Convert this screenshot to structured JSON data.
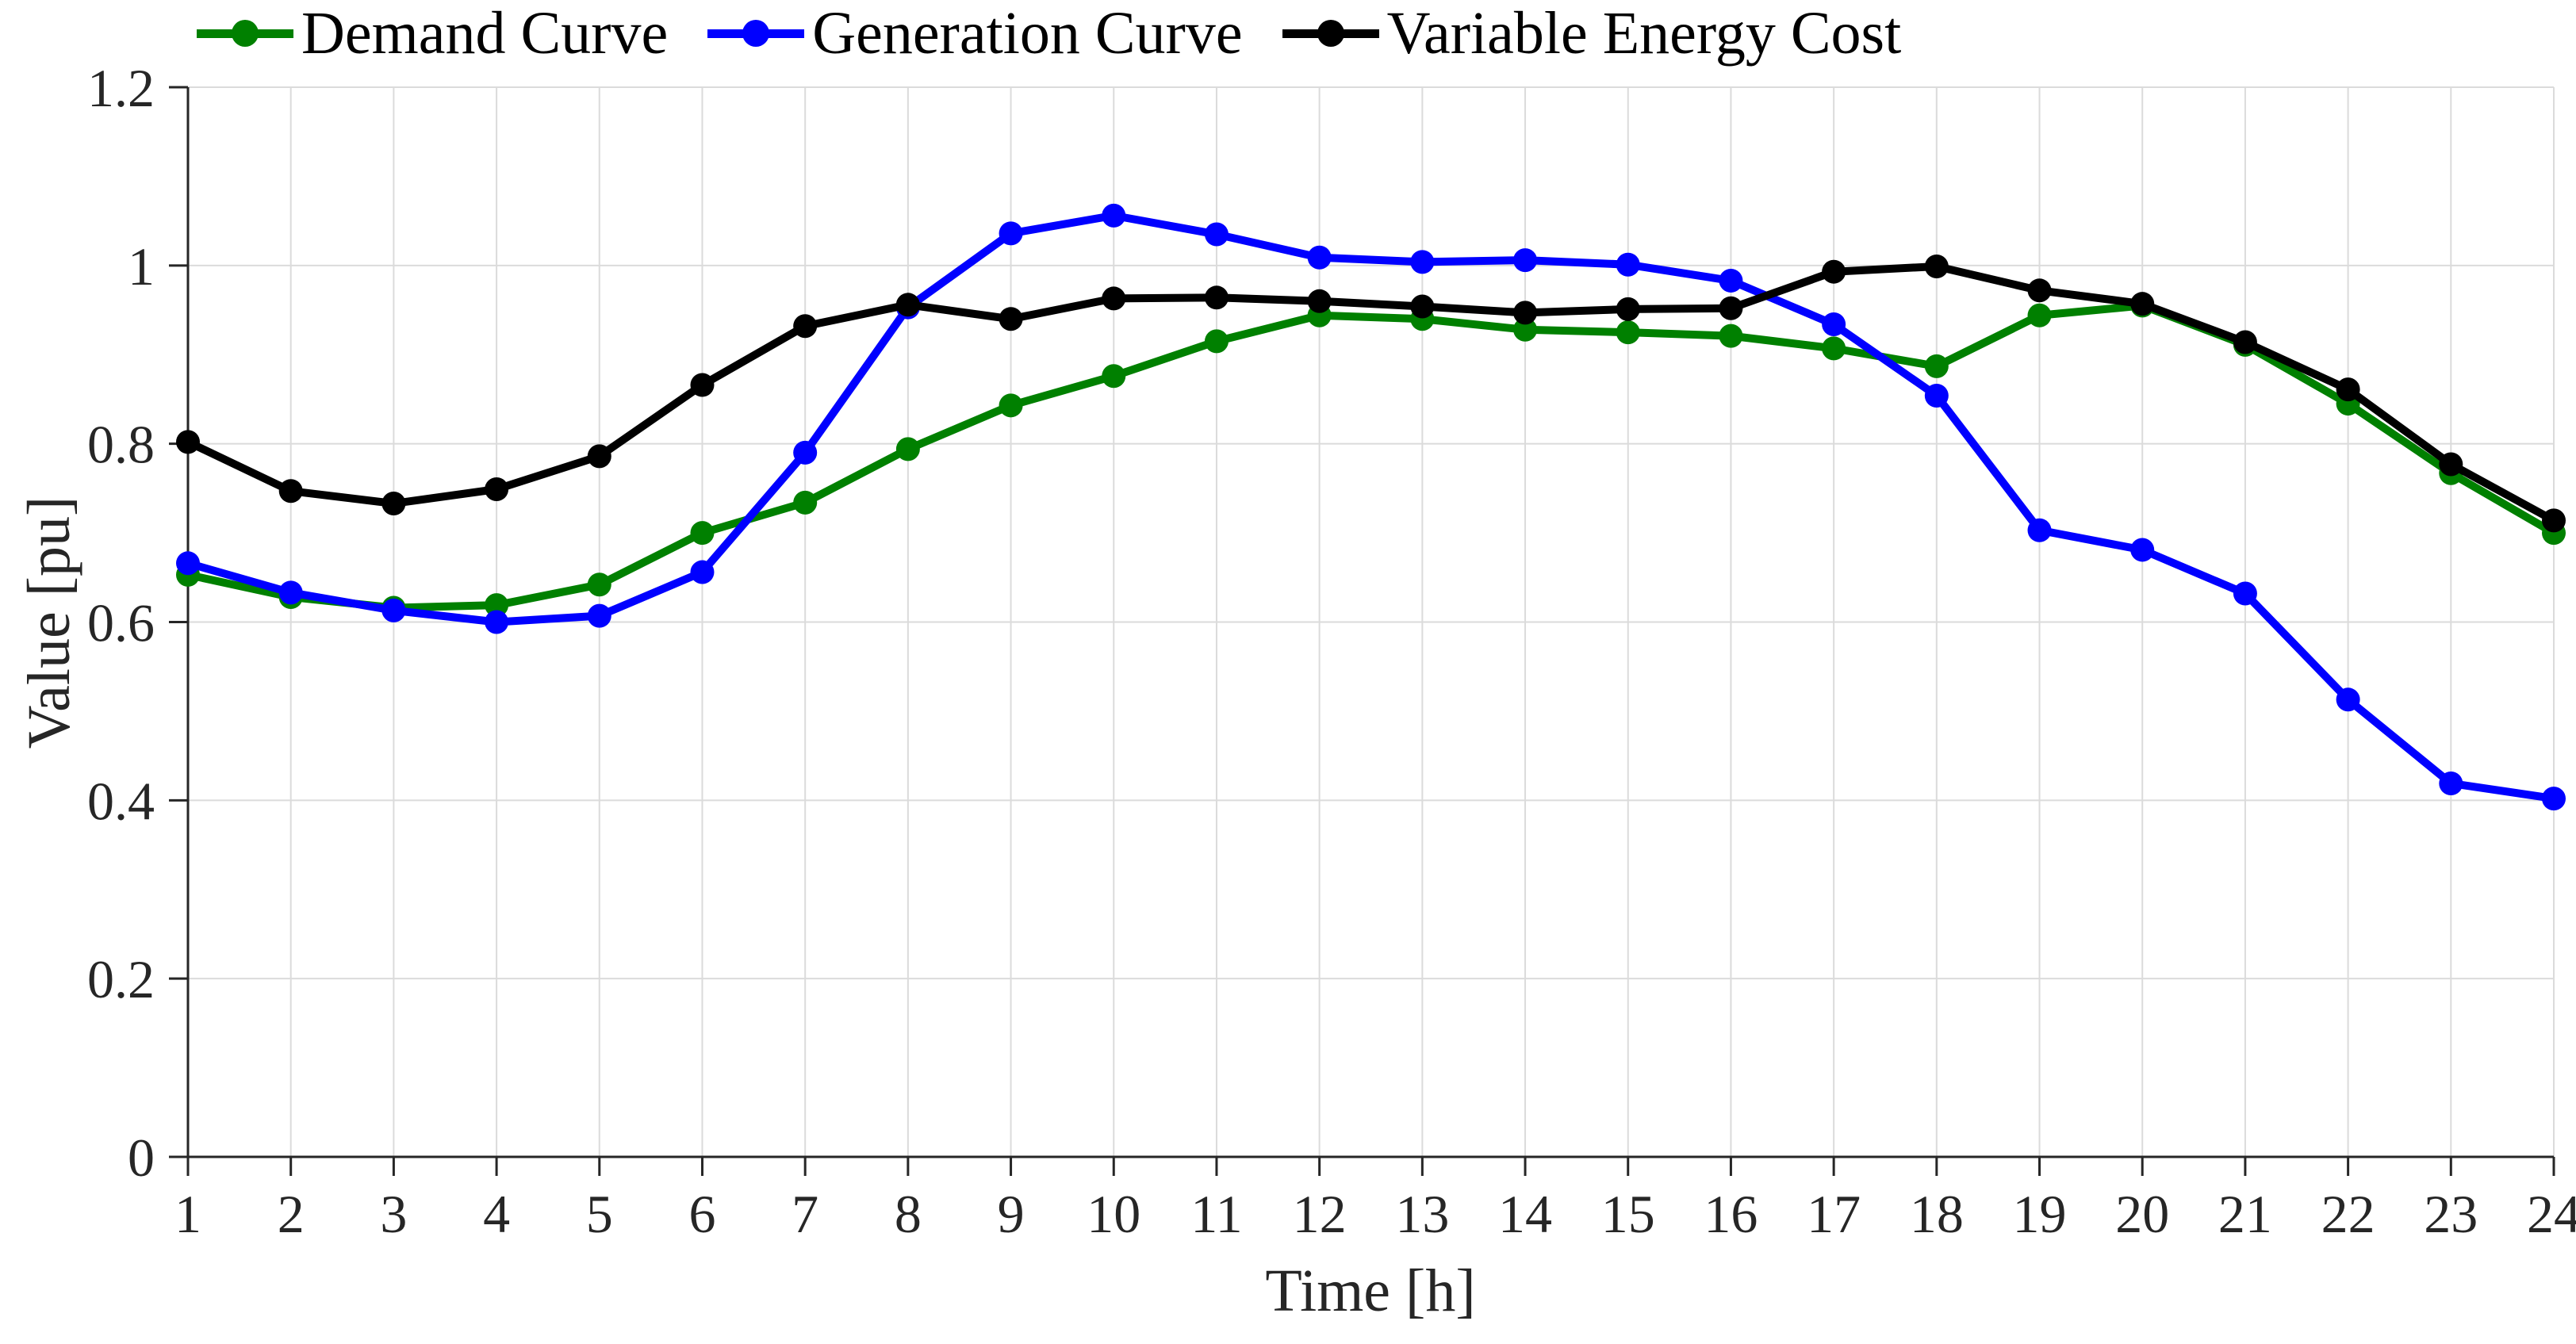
{
  "figure": {
    "background": "#ffffff",
    "axis_color": "#262626",
    "grid_color": "#DBDBDB"
  },
  "chart_data": {
    "type": "line",
    "title": "",
    "xlabel": "Time [h]",
    "ylabel": "Value [pu]",
    "xlim": [
      1,
      24
    ],
    "ylim": [
      0,
      1.2
    ],
    "grid": true,
    "legend_position": "top-left-horizontal",
    "xticks": [
      1,
      2,
      3,
      4,
      5,
      6,
      7,
      8,
      9,
      10,
      11,
      12,
      13,
      14,
      15,
      16,
      17,
      18,
      19,
      20,
      21,
      22,
      23,
      24
    ],
    "xtick_labels": [
      "1",
      "2",
      "3",
      "4",
      "5",
      "6",
      "7",
      "8",
      "9",
      "10",
      "11",
      "12",
      "13",
      "14",
      "15",
      "16",
      "17",
      "18",
      "19",
      "20",
      "21",
      "22",
      "23",
      "24"
    ],
    "yticks": [
      0,
      0.2,
      0.4,
      0.6,
      0.8,
      1.0,
      1.2
    ],
    "ytick_labels": [
      "0",
      "0.2",
      "0.4",
      "0.6",
      "0.8",
      "1",
      "1.2"
    ],
    "x": [
      1,
      2,
      3,
      4,
      5,
      6,
      7,
      8,
      9,
      10,
      11,
      12,
      13,
      14,
      15,
      16,
      17,
      18,
      19,
      20,
      21,
      22,
      23,
      24
    ],
    "series": [
      {
        "name": "Demand Curve",
        "color": "#008000",
        "marker": "circle",
        "values": [
          0.653,
          0.628,
          0.616,
          0.619,
          0.642,
          0.7,
          0.734,
          0.794,
          0.843,
          0.876,
          0.915,
          0.944,
          0.94,
          0.928,
          0.925,
          0.921,
          0.907,
          0.887,
          0.944,
          0.955,
          0.911,
          0.845,
          0.767,
          0.7
        ]
      },
      {
        "name": "Generation Curve",
        "color": "#0000FF",
        "marker": "circle",
        "values": [
          0.666,
          0.633,
          0.613,
          0.6,
          0.607,
          0.656,
          0.79,
          0.953,
          1.036,
          1.056,
          1.035,
          1.009,
          1.004,
          1.006,
          1.001,
          0.983,
          0.934,
          0.854,
          0.703,
          0.681,
          0.632,
          0.513,
          0.419,
          0.402
        ]
      },
      {
        "name": "Variable Energy Cost",
        "color": "#000000",
        "marker": "circle",
        "values": [
          0.802,
          0.747,
          0.733,
          0.749,
          0.786,
          0.866,
          0.932,
          0.956,
          0.94,
          0.963,
          0.964,
          0.96,
          0.954,
          0.947,
          0.951,
          0.952,
          0.993,
          0.999,
          0.972,
          0.957,
          0.914,
          0.861,
          0.777,
          0.714
        ]
      }
    ]
  }
}
